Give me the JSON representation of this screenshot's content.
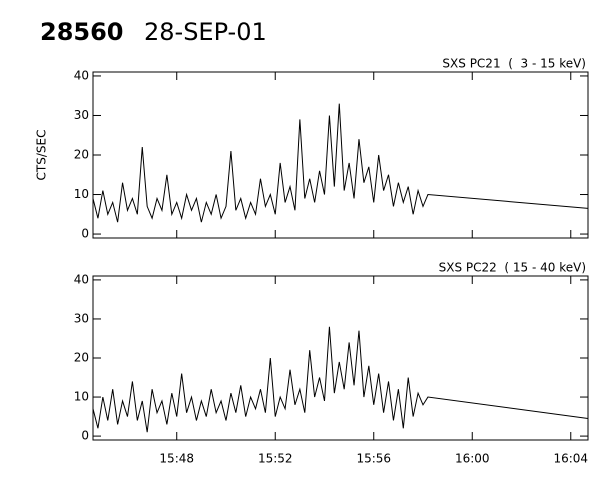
{
  "header": {
    "id": "28560",
    "date": "28-SEP-01"
  },
  "chart_data": [
    {
      "type": "line",
      "title": "SXS PC21  (  3 - 15 keV)",
      "y_label": "CTS/SEC",
      "color": "#000000",
      "x": [
        44.6,
        44.8,
        45.0,
        45.2,
        45.4,
        45.6,
        45.8,
        46.0,
        46.2,
        46.4,
        46.6,
        46.8,
        47.0,
        47.2,
        47.4,
        47.6,
        47.8,
        48.0,
        48.2,
        48.4,
        48.6,
        48.8,
        49.0,
        49.2,
        49.4,
        49.6,
        49.8,
        50.0,
        50.2,
        50.4,
        50.6,
        50.8,
        51.0,
        51.2,
        51.4,
        51.6,
        51.8,
        52.0,
        52.2,
        52.4,
        52.6,
        52.8,
        53.0,
        53.2,
        53.4,
        53.6,
        53.8,
        54.0,
        54.2,
        54.4,
        54.6,
        54.8,
        55.0,
        55.2,
        55.4,
        55.6,
        55.8,
        56.0,
        56.2,
        56.4,
        56.6,
        56.8,
        57.0,
        57.2,
        57.4,
        57.6,
        57.8,
        58.0,
        58.2,
        64.7
      ],
      "values": [
        9,
        4,
        11,
        5,
        8,
        3,
        13,
        6,
        9,
        5,
        22,
        7,
        4,
        9,
        6,
        15,
        5,
        8,
        4,
        10,
        6,
        9,
        3,
        8,
        5,
        10,
        4,
        7,
        21,
        6,
        9,
        4,
        8,
        5,
        14,
        7,
        10,
        5,
        18,
        8,
        12,
        6,
        29,
        9,
        14,
        8,
        16,
        10,
        30,
        12,
        33,
        11,
        18,
        9,
        24,
        13,
        17,
        8,
        20,
        11,
        15,
        7,
        13,
        8,
        12,
        5,
        11,
        7,
        10,
        6.5
      ],
      "xlim": [
        44.6,
        64.7
      ],
      "ylim": [
        -1,
        41
      ],
      "yticks": [
        0,
        10,
        20,
        30,
        40
      ],
      "xticks": [
        48,
        52,
        56,
        60,
        64
      ]
    },
    {
      "type": "line",
      "title": "SXS PC22  ( 15 - 40 keV)",
      "color": "#000000",
      "x": [
        44.6,
        44.8,
        45.0,
        45.2,
        45.4,
        45.6,
        45.8,
        46.0,
        46.2,
        46.4,
        46.6,
        46.8,
        47.0,
        47.2,
        47.4,
        47.6,
        47.8,
        48.0,
        48.2,
        48.4,
        48.6,
        48.8,
        49.0,
        49.2,
        49.4,
        49.6,
        49.8,
        50.0,
        50.2,
        50.4,
        50.6,
        50.8,
        51.0,
        51.2,
        51.4,
        51.6,
        51.8,
        52.0,
        52.2,
        52.4,
        52.6,
        52.8,
        53.0,
        53.2,
        53.4,
        53.6,
        53.8,
        54.0,
        54.2,
        54.4,
        54.6,
        54.8,
        55.0,
        55.2,
        55.4,
        55.6,
        55.8,
        56.0,
        56.2,
        56.4,
        56.6,
        56.8,
        57.0,
        57.2,
        57.4,
        57.6,
        57.8,
        58.0,
        58.2,
        64.7
      ],
      "values": [
        7,
        2,
        10,
        4,
        12,
        3,
        9,
        5,
        14,
        4,
        9,
        1,
        12,
        6,
        9,
        3,
        11,
        5,
        16,
        6,
        10,
        4,
        9,
        5,
        12,
        6,
        9,
        4,
        11,
        6,
        13,
        5,
        10,
        7,
        12,
        6,
        20,
        5,
        10,
        7,
        17,
        8,
        12,
        6,
        22,
        10,
        15,
        9,
        28,
        11,
        19,
        12,
        24,
        13,
        27,
        10,
        18,
        8,
        16,
        6,
        14,
        4,
        12,
        2,
        15,
        5,
        11,
        8,
        10,
        4.5
      ],
      "xlim": [
        44.6,
        64.7
      ],
      "ylim": [
        -1,
        41
      ],
      "yticks": [
        0,
        10,
        20,
        30,
        40
      ],
      "xticks": [
        {
          "value": 48,
          "label": "15:48"
        },
        {
          "value": 52,
          "label": "15:52"
        },
        {
          "value": 56,
          "label": "15:56"
        },
        {
          "value": 60,
          "label": "16:00"
        },
        {
          "value": 64,
          "label": "16:04"
        }
      ]
    }
  ]
}
